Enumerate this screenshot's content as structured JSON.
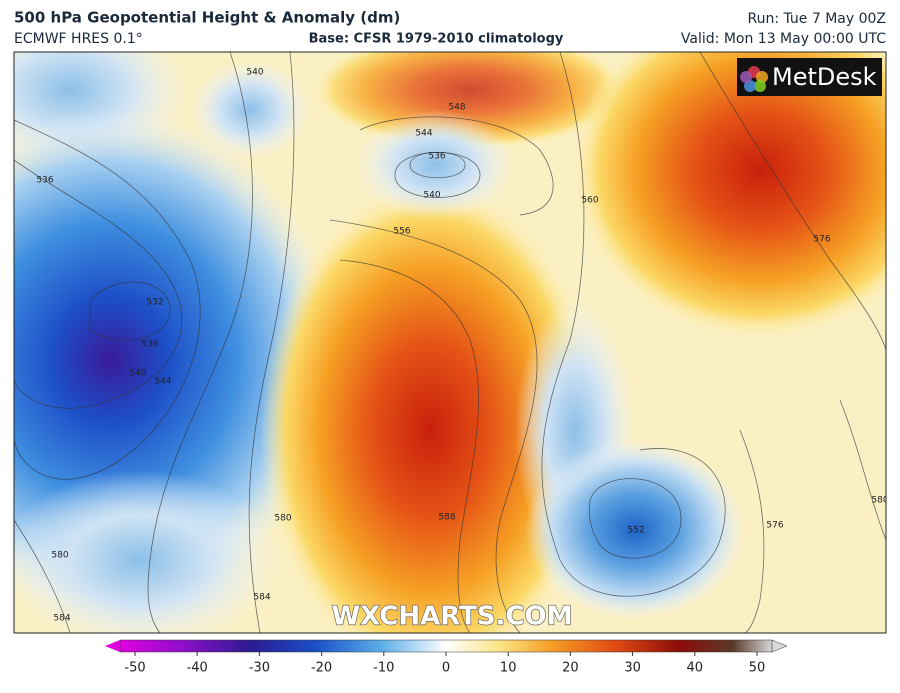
{
  "header": {
    "title": "500 hPa Geopotential Height & Anomaly (dm)",
    "model": "ECMWF HRES 0.1°",
    "base": "Base: CFSR 1979-2010 climatology",
    "run": "Run: Tue 7 May 00Z",
    "valid": "Valid: Mon 13 May 00:00 UTC"
  },
  "logo": "MetDesk",
  "watermark": "WXCHARTS.COM",
  "contour_labels": [
    540,
    548,
    544,
    536,
    540,
    556,
    560,
    576,
    532,
    536,
    540,
    544,
    580,
    588,
    552,
    576,
    580,
    584,
    584,
    580,
    536
  ],
  "colorbar": {
    "ticks": [
      -50,
      -40,
      -30,
      -20,
      -10,
      0,
      10,
      20,
      30,
      40,
      50
    ]
  }
}
